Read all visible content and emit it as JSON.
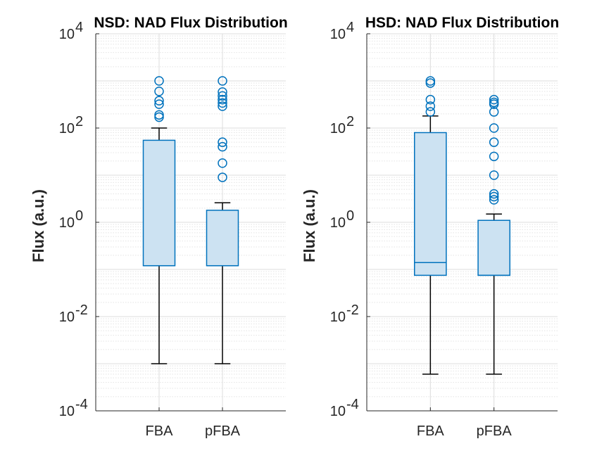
{
  "colors": {
    "box_edge": "#0072BD",
    "box_fill": "#CCE2F2",
    "outlier": "#0072BD",
    "whisker": "#000000",
    "axis": "#262626",
    "grid_major": "#DCDCDC",
    "grid_minor": "#E4E4E4"
  },
  "chart_data": [
    {
      "type": "boxplot",
      "title": "NSD: NAD Flux Distribution",
      "ylabel": "Flux (a.u.)",
      "xlabel": "",
      "yscale": "log",
      "ylim": [
        0.0001,
        10000
      ],
      "grid": true,
      "minor_grid": true,
      "yticks": [
        {
          "value": 0.0001,
          "base": "10",
          "exp": "-4"
        },
        {
          "value": 0.01,
          "base": "10",
          "exp": "-2"
        },
        {
          "value": 1,
          "base": "10",
          "exp": "0"
        },
        {
          "value": 100,
          "base": "10",
          "exp": "2"
        },
        {
          "value": 10000,
          "base": "10",
          "exp": "4"
        }
      ],
      "categories": [
        "FBA",
        "pFBA"
      ],
      "boxes": [
        {
          "category": "FBA",
          "whisker_low": 0.001,
          "q1": 0.12,
          "median": 0.12,
          "q3": 55,
          "whisker_high": 100,
          "outliers": [
            1000,
            600,
            380,
            320,
            190,
            170
          ]
        },
        {
          "category": "pFBA",
          "whisker_low": 0.001,
          "q1": 0.12,
          "median": 0.12,
          "q3": 1.8,
          "whisker_high": 2.6,
          "outliers": [
            1000,
            580,
            480,
            400,
            340,
            290,
            50,
            40,
            18,
            9
          ]
        }
      ]
    },
    {
      "type": "boxplot",
      "title": "HSD: NAD Flux Distribution",
      "ylabel": "Flux (a.u.)",
      "xlabel": "",
      "yscale": "log",
      "ylim": [
        0.0001,
        10000
      ],
      "grid": true,
      "minor_grid": true,
      "yticks": [
        {
          "value": 0.0001,
          "base": "10",
          "exp": "-4"
        },
        {
          "value": 0.01,
          "base": "10",
          "exp": "-2"
        },
        {
          "value": 1,
          "base": "10",
          "exp": "0"
        },
        {
          "value": 100,
          "base": "10",
          "exp": "2"
        },
        {
          "value": 10000,
          "base": "10",
          "exp": "4"
        }
      ],
      "categories": [
        "FBA",
        "pFBA"
      ],
      "boxes": [
        {
          "category": "FBA",
          "whisker_low": 0.0006,
          "q1": 0.075,
          "median": 0.14,
          "q3": 80,
          "whisker_high": 180,
          "outliers": [
            1000,
            900,
            400,
            290,
            220
          ]
        },
        {
          "category": "pFBA",
          "whisker_low": 0.0006,
          "q1": 0.075,
          "median": 0.075,
          "q3": 1.1,
          "whisker_high": 1.5,
          "outliers": [
            400,
            350,
            320,
            220,
            100,
            50,
            25,
            10,
            4,
            3.5,
            3
          ]
        }
      ]
    }
  ]
}
